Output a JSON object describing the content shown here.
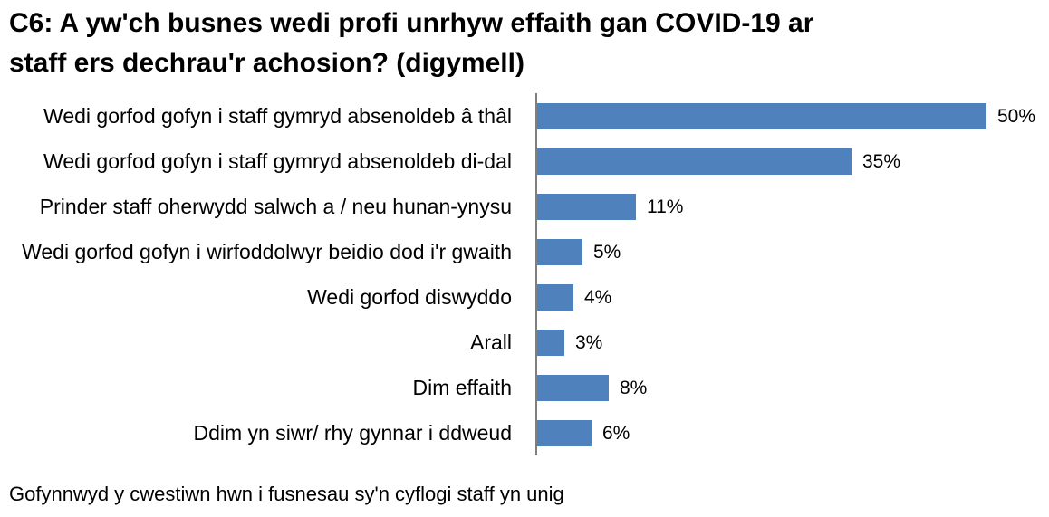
{
  "header": {
    "title_lines": [
      "C6: A yw'ch busnes wedi profi unrhyw effaith gan COVID-19 ar",
      "staff ers dechrau'r achosion? (digymell)"
    ]
  },
  "chart_data": {
    "type": "bar",
    "orientation": "horizontal",
    "title": "C6: A yw'ch busnes wedi profi unrhyw effaith gan COVID-19 ar staff ers dechrau'r achosion? (digymell)",
    "categories": [
      "Wedi gorfod gofyn i staff gymryd absenoldeb â thâl",
      "Wedi gorfod gofyn i staff gymryd absenoldeb di-dal",
      "Prinder staff oherwydd salwch a / neu hunan-ynysu",
      "Wedi gorfod gofyn i wirfoddolwyr beidio dod i'r gwaith",
      "Wedi gorfod diswyddo",
      "Arall",
      "Dim effaith",
      "Ddim yn siwr/ rhy gynnar i ddweud"
    ],
    "values": [
      50,
      35,
      11,
      5,
      4,
      3,
      8,
      6
    ],
    "value_labels": [
      "50%",
      "35%",
      "11%",
      "5%",
      "4%",
      "3%",
      "8%",
      "6%"
    ],
    "xlim": [
      0,
      50
    ],
    "grid": false,
    "legend": "none",
    "value_label_position": "outside-end",
    "bar_color": "#4F81BD",
    "axis_color": "#808080",
    "text_color": "#000000",
    "footnote": "Gofynnwyd y cwestiwn hwn i fusnesau sy'n cyflogi staff yn unig"
  }
}
